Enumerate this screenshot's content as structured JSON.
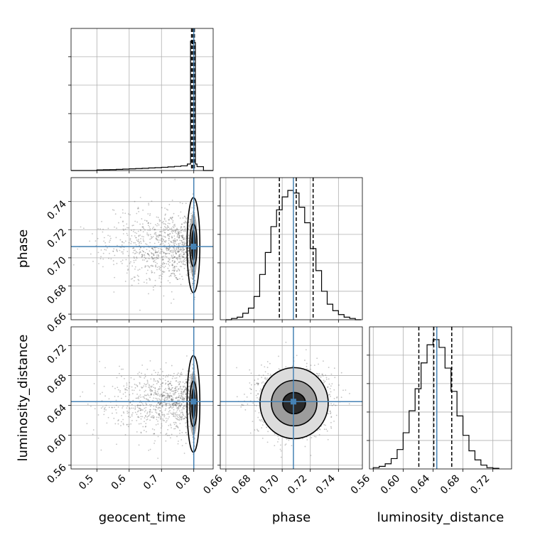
{
  "chart_data": {
    "type": "corner",
    "parameters": [
      {
        "name": "geocent_time",
        "label": "geocent_time",
        "range": [
          0.42,
          0.86
        ],
        "ticks": [
          0.5,
          0.6,
          0.7,
          0.8
        ],
        "tick_labels": [
          "0.5",
          "0.6",
          "0.7",
          "0.8"
        ],
        "injected": 0.8,
        "quantiles": [
          0.793,
          0.797,
          0.802
        ]
      },
      {
        "name": "phase",
        "label": "phase",
        "range": [
          0.656,
          0.757
        ],
        "ticks": [
          0.66,
          0.68,
          0.7,
          0.72,
          0.74
        ],
        "tick_labels": [
          "0.66",
          "0.68",
          "0.70",
          "0.72",
          "0.74"
        ],
        "injected": 0.708,
        "quantiles": [
          0.698,
          0.71,
          0.722
        ]
      },
      {
        "name": "luminosity_distance",
        "label": "luminosity_distance",
        "range": [
          0.555,
          0.745
        ],
        "ticks": [
          0.56,
          0.6,
          0.64,
          0.68,
          0.72
        ],
        "tick_labels": [
          "0.56",
          "0.60",
          "0.64",
          "0.68",
          "0.72"
        ],
        "injected": 0.645,
        "quantiles": [
          0.621,
          0.641,
          0.665
        ]
      }
    ],
    "histograms": {
      "geocent_time": {
        "edges": [
          0.42,
          0.44,
          0.46,
          0.48,
          0.5,
          0.52,
          0.54,
          0.56,
          0.58,
          0.6,
          0.62,
          0.64,
          0.66,
          0.68,
          0.7,
          0.72,
          0.74,
          0.76,
          0.78,
          0.79,
          0.795,
          0.8,
          0.805,
          0.81,
          0.83,
          0.86
        ],
        "counts": [
          0,
          0,
          0,
          0,
          0.005,
          0.006,
          0.007,
          0.009,
          0.011,
          0.013,
          0.015,
          0.017,
          0.02,
          0.022,
          0.025,
          0.028,
          0.032,
          0.036,
          0.05,
          1.0,
          0.98,
          0.99,
          0.05,
          0.03,
          0
        ]
      },
      "phase": {
        "edges": [
          0.66,
          0.664,
          0.668,
          0.672,
          0.676,
          0.68,
          0.684,
          0.688,
          0.692,
          0.696,
          0.7,
          0.704,
          0.708,
          0.712,
          0.716,
          0.72,
          0.724,
          0.728,
          0.732,
          0.736,
          0.74,
          0.744,
          0.748,
          0.752,
          0.756
        ],
        "counts": [
          0.0,
          0.01,
          0.02,
          0.05,
          0.09,
          0.18,
          0.35,
          0.52,
          0.72,
          0.85,
          0.95,
          1.0,
          0.98,
          0.87,
          0.75,
          0.55,
          0.38,
          0.22,
          0.12,
          0.07,
          0.04,
          0.02,
          0.01,
          0.0
        ]
      },
      "luminosity_distance": {
        "edges": [
          0.56,
          0.568,
          0.576,
          0.584,
          0.592,
          0.6,
          0.608,
          0.616,
          0.624,
          0.632,
          0.64,
          0.648,
          0.656,
          0.664,
          0.672,
          0.68,
          0.688,
          0.696,
          0.704,
          0.712,
          0.72,
          0.728
        ],
        "counts": [
          0.01,
          0.02,
          0.04,
          0.08,
          0.15,
          0.28,
          0.45,
          0.62,
          0.82,
          0.96,
          1.0,
          0.94,
          0.78,
          0.6,
          0.41,
          0.26,
          0.14,
          0.07,
          0.03,
          0.01,
          0.005
        ]
      }
    },
    "contour_levels": [
      0.393,
      0.865,
      0.989
    ],
    "injected_marker_color": "#4682b4",
    "quantile_line_style": "dashed",
    "grid": true
  }
}
